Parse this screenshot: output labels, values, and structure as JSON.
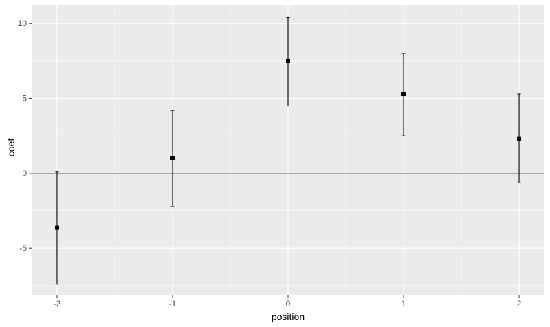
{
  "chart_data": {
    "type": "scatter",
    "xlabel": "position",
    "ylabel": "coef",
    "x_ticks": [
      -2,
      -1,
      0,
      1,
      2
    ],
    "y_ticks": [
      -5,
      0,
      5,
      10
    ],
    "xlim": [
      -2.22,
      2.22
    ],
    "ylim": [
      -8.1,
      11.2
    ],
    "grid": true,
    "reference_line": {
      "y": 0,
      "color": "#dc1f26"
    },
    "colors": {
      "panel": "#ebebeb",
      "grid_major": "#ffffff",
      "points": "#000000"
    },
    "points": [
      {
        "x": -2,
        "y": -3.6,
        "ymin": -7.4,
        "ymax": 0.1
      },
      {
        "x": -1,
        "y": 1.0,
        "ymin": -2.2,
        "ymax": 4.2
      },
      {
        "x": 0,
        "y": 7.5,
        "ymin": 4.5,
        "ymax": 10.4
      },
      {
        "x": 1,
        "y": 5.3,
        "ymin": 2.5,
        "ymax": 8.0
      },
      {
        "x": 2,
        "y": 2.3,
        "ymin": -0.6,
        "ymax": 5.3
      }
    ]
  }
}
